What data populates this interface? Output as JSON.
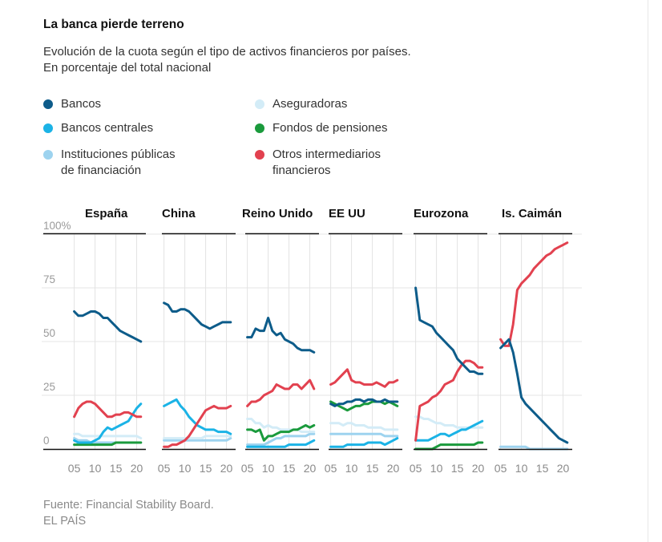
{
  "header": {
    "title": "La banca pierde terreno",
    "subtitle_line1": "Evolución de la cuota según el tipo de activos financieros por países.",
    "subtitle_line2": "En porcentaje del total nacional"
  },
  "legend": [
    {
      "label_line1": "Bancos",
      "label_line2": "",
      "color": "#0d5c8a"
    },
    {
      "label_line1": "Aseguradoras",
      "label_line2": "",
      "color": "#d3ecf7"
    },
    {
      "label_line1": "Bancos centrales",
      "label_line2": "",
      "color": "#1bb3e6"
    },
    {
      "label_line1": "Fondos de pensiones",
      "label_line2": "",
      "color": "#1a9a3c"
    },
    {
      "label_line1": "Instituciones públicas",
      "label_line2": "de financiación",
      "color": "#9dd3ef"
    },
    {
      "label_line1": "Otros intermediarios",
      "label_line2": "financieros",
      "color": "#e2414f"
    }
  ],
  "footer": {
    "source": "Fuente: Financial Stability Board.",
    "publisher": "EL PAÍS"
  },
  "chart_data": {
    "type": "line",
    "ylim": [
      0,
      100
    ],
    "y_ticks": [
      0,
      25,
      50,
      75,
      100
    ],
    "y_tick_labels": [
      "0",
      "25",
      "50",
      "75",
      "100%"
    ],
    "x": [
      2005,
      2006,
      2007,
      2008,
      2009,
      2010,
      2011,
      2012,
      2013,
      2014,
      2015,
      2016,
      2017,
      2018,
      2019,
      2020,
      2021
    ],
    "x_ticks": [
      2005,
      2010,
      2015,
      2020
    ],
    "x_tick_labels": [
      "05",
      "10",
      "15",
      "20"
    ],
    "grid": true,
    "series_colors": {
      "bancos": "#0d5c8a",
      "bancos_centrales": "#1bb3e6",
      "instituciones_publicas": "#9dd3ef",
      "aseguradoras": "#d3ecf7",
      "fondos_pensiones": "#1a9a3c",
      "otros": "#e2414f"
    },
    "panels": [
      {
        "name": "España",
        "series": {
          "bancos": [
            64,
            62,
            62,
            63,
            64,
            64,
            63,
            61,
            61,
            59,
            57,
            55,
            54,
            53,
            52,
            51,
            50
          ],
          "otros": [
            15,
            19,
            21,
            22,
            22,
            21,
            19,
            17,
            15,
            15,
            16,
            16,
            17,
            17,
            16,
            15,
            15
          ],
          "aseguradoras": [
            7,
            7,
            6,
            6,
            6,
            6,
            6,
            6,
            6,
            6,
            6,
            6,
            6,
            6,
            6,
            6,
            5
          ],
          "instituciones_publicas": [
            5,
            4,
            4,
            4,
            3,
            3,
            3,
            3,
            3,
            3,
            3,
            3,
            3,
            3,
            3,
            3,
            3
          ],
          "bancos_centrales": [
            4,
            3,
            3,
            3,
            3,
            4,
            5,
            8,
            10,
            9,
            10,
            11,
            12,
            13,
            16,
            19,
            21
          ],
          "fondos_pensiones": [
            2,
            2,
            2,
            2,
            2,
            2,
            2,
            2,
            2,
            2,
            3,
            3,
            3,
            3,
            3,
            3,
            3
          ]
        }
      },
      {
        "name": "China",
        "series": {
          "bancos": [
            68,
            67,
            64,
            64,
            65,
            65,
            64,
            62,
            60,
            58,
            57,
            56,
            57,
            58,
            59,
            59,
            59
          ],
          "bancos_centrales": [
            20,
            21,
            22,
            23,
            20,
            18,
            15,
            13,
            11,
            10,
            9,
            9,
            9,
            8,
            8,
            8,
            7
          ],
          "otros": [
            1,
            1,
            2,
            2,
            3,
            4,
            6,
            9,
            12,
            15,
            18,
            19,
            20,
            19,
            19,
            19,
            20
          ],
          "aseguradoras": [
            5,
            5,
            5,
            5,
            5,
            5,
            5,
            5,
            5,
            5,
            6,
            6,
            6,
            6,
            6,
            6,
            6
          ],
          "instituciones_publicas": [
            4,
            4,
            4,
            4,
            4,
            4,
            4,
            4,
            4,
            4,
            4,
            4,
            4,
            4,
            4,
            4,
            5
          ]
        }
      },
      {
        "name": "Reino Unido",
        "series": {
          "bancos": [
            52,
            52,
            56,
            55,
            55,
            61,
            55,
            53,
            54,
            51,
            50,
            49,
            47,
            46,
            46,
            46,
            45
          ],
          "otros": [
            20,
            22,
            22,
            23,
            25,
            26,
            27,
            30,
            29,
            28,
            28,
            30,
            30,
            28,
            30,
            32,
            28
          ],
          "aseguradoras": [
            14,
            14,
            12,
            12,
            10,
            11,
            10,
            10,
            9,
            9,
            9,
            9,
            9,
            8,
            8,
            8,
            8
          ],
          "fondos_pensiones": [
            9,
            9,
            8,
            9,
            4,
            6,
            6,
            7,
            8,
            8,
            8,
            9,
            9,
            10,
            11,
            10,
            11
          ],
          "instituciones_publicas": [
            2,
            2,
            2,
            2,
            2,
            3,
            4,
            5,
            5,
            6,
            6,
            6,
            6,
            6,
            6,
            7,
            7
          ],
          "bancos_centrales": [
            1,
            1,
            1,
            1,
            1,
            1,
            1,
            1,
            1,
            1,
            2,
            2,
            2,
            2,
            2,
            3,
            4
          ]
        }
      },
      {
        "name": "EE UU",
        "series": {
          "otros": [
            30,
            31,
            33,
            35,
            37,
            32,
            31,
            31,
            30,
            30,
            30,
            31,
            30,
            29,
            31,
            31,
            32
          ],
          "bancos": [
            21,
            20,
            21,
            21,
            22,
            22,
            23,
            23,
            22,
            23,
            23,
            22,
            22,
            23,
            22,
            22,
            22
          ],
          "fondos_pensiones": [
            22,
            21,
            20,
            19,
            18,
            19,
            20,
            20,
            21,
            21,
            22,
            22,
            22,
            21,
            22,
            21,
            20
          ],
          "aseguradoras": [
            12,
            12,
            12,
            11,
            12,
            12,
            11,
            11,
            11,
            10,
            10,
            10,
            10,
            9,
            9,
            9,
            9
          ],
          "instituciones_publicas": [
            7,
            7,
            7,
            7,
            7,
            7,
            7,
            7,
            7,
            7,
            7,
            7,
            7,
            6,
            6,
            6,
            6
          ],
          "bancos_centrales": [
            1,
            1,
            1,
            1,
            2,
            2,
            2,
            2,
            2,
            3,
            3,
            3,
            3,
            2,
            3,
            4,
            5
          ]
        }
      },
      {
        "name": "Eurozona",
        "series": {
          "bancos": [
            75,
            60,
            59,
            58,
            57,
            54,
            52,
            50,
            48,
            46,
            42,
            40,
            38,
            36,
            36,
            35,
            35
          ],
          "otros": [
            4,
            20,
            21,
            22,
            24,
            25,
            27,
            30,
            31,
            32,
            36,
            39,
            41,
            41,
            40,
            38,
            38
          ],
          "aseguradoras": [
            15,
            15,
            14,
            14,
            13,
            12,
            12,
            11,
            11,
            11,
            10,
            10,
            10,
            10,
            10,
            10,
            10
          ],
          "bancos_centrales": [
            4,
            4,
            4,
            4,
            5,
            6,
            7,
            7,
            6,
            7,
            8,
            9,
            9,
            10,
            11,
            12,
            13
          ],
          "fondos_pensiones": [
            0,
            0,
            0,
            0,
            0,
            1,
            2,
            2,
            2,
            2,
            2,
            2,
            2,
            2,
            2,
            3,
            3
          ]
        }
      },
      {
        "name": "Is. Caimán",
        "series": {
          "bancos": [
            47,
            49,
            51,
            45,
            35,
            24,
            21,
            19,
            17,
            15,
            13,
            11,
            9,
            7,
            5,
            4,
            3
          ],
          "otros": [
            51,
            48,
            48,
            58,
            74,
            77,
            79,
            81,
            84,
            86,
            88,
            90,
            91,
            93,
            94,
            95,
            96
          ],
          "instituciones_publicas": [
            1,
            1,
            1,
            1,
            1,
            1,
            1,
            0,
            0,
            0,
            0,
            0,
            0,
            0,
            0,
            0,
            0
          ]
        }
      }
    ]
  }
}
